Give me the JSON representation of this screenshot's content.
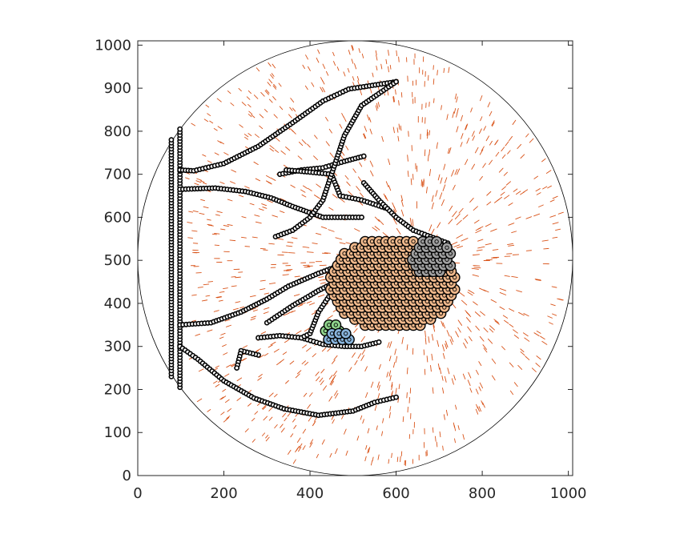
{
  "chart_data": {
    "type": "scatter",
    "title": "",
    "xlabel": "",
    "ylabel": "",
    "xlim": [
      0,
      1010
    ],
    "ylim": [
      0,
      1010
    ],
    "xticks": [
      0,
      200,
      400,
      600,
      800,
      1000
    ],
    "yticks": [
      0,
      100,
      200,
      300,
      400,
      500,
      600,
      700,
      800,
      900,
      1000
    ],
    "xtick_labels": [
      "0",
      "200",
      "400",
      "600",
      "800",
      "1000"
    ],
    "ytick_labels": [
      "0",
      "100",
      "200",
      "300",
      "400",
      "500",
      "600",
      "700",
      "800",
      "900",
      "1000"
    ],
    "grid": false,
    "box": true,
    "boundary_circle": {
      "center": [
        505,
        505
      ],
      "radius": 505
    },
    "colors": {
      "boundary_particles": "#000000",
      "filled_particles": "#f0b98c",
      "gray_particles": "#a0a0a0",
      "green_particles": "#8fd48c",
      "blue_particles": "#88b4dc",
      "quiver": "#d95319"
    },
    "series": [
      {
        "marker": "black-ring",
        "paths": [
          [
            [
              78,
              230
            ],
            [
              78,
              780
            ]
          ],
          [
            [
              98,
              205
            ],
            [
              98,
              805
            ]
          ],
          [
            [
              98,
              710
            ],
            [
              130,
              708
            ],
            [
              200,
              725
            ],
            [
              280,
              765
            ],
            [
              360,
              820
            ],
            [
              430,
              870
            ],
            [
              490,
              898
            ],
            [
              600,
              915
            ]
          ],
          [
            [
              98,
              665
            ],
            [
              180,
              668
            ],
            [
              250,
              660
            ],
            [
              310,
              645
            ],
            [
              360,
              625
            ],
            [
              430,
              600
            ],
            [
              520,
              600
            ]
          ],
          [
            [
              98,
              350
            ],
            [
              170,
              355
            ],
            [
              240,
              380
            ],
            [
              300,
              410
            ],
            [
              350,
              440
            ],
            [
              420,
              470
            ],
            [
              500,
              500
            ],
            [
              560,
              520
            ]
          ],
          [
            [
              98,
              300
            ],
            [
              140,
              270
            ],
            [
              200,
              220
            ],
            [
              270,
              180
            ],
            [
              340,
              155
            ],
            [
              420,
              140
            ],
            [
              500,
              150
            ],
            [
              550,
              170
            ],
            [
              600,
              182
            ]
          ],
          [
            [
              330,
              700
            ],
            [
              380,
              710
            ],
            [
              430,
              715
            ],
            [
              480,
              730
            ],
            [
              525,
              742
            ]
          ],
          [
            [
              345,
              710
            ],
            [
              400,
              705
            ],
            [
              450,
              700
            ],
            [
              470,
              650
            ],
            [
              520,
              640
            ],
            [
              580,
              620
            ]
          ],
          [
            [
              300,
              355
            ],
            [
              360,
              395
            ],
            [
              420,
              430
            ],
            [
              480,
              460
            ],
            [
              560,
              490
            ],
            [
              620,
              520
            ]
          ],
          [
            [
              280,
              320
            ],
            [
              330,
              325
            ],
            [
              380,
              320
            ],
            [
              430,
              305
            ],
            [
              480,
              300
            ],
            [
              520,
              300
            ],
            [
              560,
              310
            ]
          ],
          [
            [
              320,
              555
            ],
            [
              360,
              570
            ],
            [
              400,
              600
            ],
            [
              430,
              640
            ],
            [
              450,
              700
            ],
            [
              480,
              790
            ],
            [
              520,
              860
            ],
            [
              600,
              915
            ]
          ],
          [
            [
              280,
              280
            ],
            [
              240,
              290
            ],
            [
              230,
              250
            ]
          ],
          [
            [
              380,
              320
            ],
            [
              400,
              330
            ],
            [
              420,
              380
            ],
            [
              460,
              440
            ],
            [
              520,
              480
            ]
          ],
          [
            [
              525,
              680
            ],
            [
              560,
              640
            ],
            [
              600,
              600
            ],
            [
              640,
              570
            ],
            [
              680,
              555
            ],
            [
              720,
              540
            ]
          ]
        ]
      },
      {
        "marker": "orange-filled",
        "cluster": {
          "center": [
            590,
            445
          ],
          "rx": 150,
          "ry": 110
        }
      },
      {
        "marker": "gray-filled",
        "cluster": {
          "center": [
            680,
            505
          ],
          "rx": 50,
          "ry": 45
        }
      },
      {
        "marker": "green-filled",
        "cluster": {
          "center": [
            450,
            340
          ],
          "rx": 22,
          "ry": 18
        }
      },
      {
        "marker": "blue-filled",
        "cluster": {
          "center": [
            470,
            318
          ],
          "rx": 35,
          "ry": 16
        }
      }
    ],
    "quiver": {
      "color": "#d95319",
      "sink": [
        650,
        500
      ]
    }
  }
}
